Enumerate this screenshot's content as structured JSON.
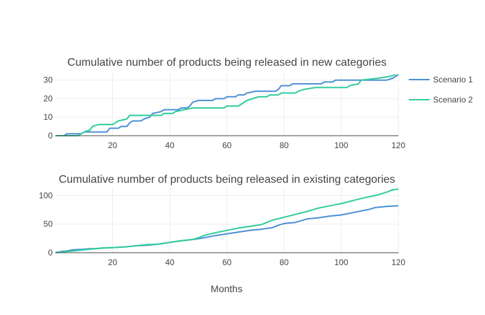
{
  "chart_data": [
    {
      "type": "line",
      "title": "Cumulative number of products being released in new categories",
      "xlabel": "",
      "ylabel": "",
      "xlim": [
        0,
        120
      ],
      "ylim": [
        0,
        34
      ],
      "xticks": [
        20,
        40,
        60,
        80,
        100,
        120
      ],
      "yticks": [
        0,
        10,
        20,
        30
      ],
      "grid": true,
      "series": [
        {
          "name": "Scenario 1",
          "color": "#4a8fd4",
          "points": [
            [
              0,
              0
            ],
            [
              3,
              0
            ],
            [
              4,
              1
            ],
            [
              9,
              1
            ],
            [
              10,
              2
            ],
            [
              18,
              2
            ],
            [
              19,
              4
            ],
            [
              22,
              4
            ],
            [
              23,
              5
            ],
            [
              25,
              5
            ],
            [
              26,
              7
            ],
            [
              27,
              8
            ],
            [
              30,
              8
            ],
            [
              31,
              9
            ],
            [
              33,
              10
            ],
            [
              34,
              12
            ],
            [
              37,
              13
            ],
            [
              38,
              14
            ],
            [
              43,
              14
            ],
            [
              44,
              15
            ],
            [
              46,
              15
            ],
            [
              47,
              16
            ],
            [
              48,
              18
            ],
            [
              50,
              19
            ],
            [
              55,
              19
            ],
            [
              56,
              20
            ],
            [
              59,
              20
            ],
            [
              60,
              21
            ],
            [
              63,
              21
            ],
            [
              64,
              22
            ],
            [
              66,
              22
            ],
            [
              67,
              23
            ],
            [
              70,
              24
            ],
            [
              77,
              24
            ],
            [
              78,
              25
            ],
            [
              79,
              27
            ],
            [
              82,
              27
            ],
            [
              83,
              28
            ],
            [
              93,
              28
            ],
            [
              94,
              29
            ],
            [
              97,
              29
            ],
            [
              98,
              30
            ],
            [
              116,
              30
            ],
            [
              118,
              31
            ],
            [
              119,
              32
            ],
            [
              120,
              33
            ]
          ]
        },
        {
          "name": "Scenario 2",
          "color": "#2ecc9a",
          "points": [
            [
              0,
              0
            ],
            [
              8,
              0
            ],
            [
              9,
              1
            ],
            [
              10,
              2
            ],
            [
              12,
              3
            ],
            [
              13,
              5
            ],
            [
              15,
              6
            ],
            [
              20,
              6
            ],
            [
              21,
              7
            ],
            [
              22,
              8
            ],
            [
              25,
              9
            ],
            [
              26,
              11
            ],
            [
              37,
              11
            ],
            [
              38,
              12
            ],
            [
              41,
              12
            ],
            [
              42,
              13
            ],
            [
              45,
              14
            ],
            [
              48,
              15
            ],
            [
              59,
              15
            ],
            [
              60,
              16
            ],
            [
              64,
              16
            ],
            [
              65,
              17
            ],
            [
              67,
              19
            ],
            [
              69,
              20
            ],
            [
              71,
              21
            ],
            [
              74,
              21
            ],
            [
              75,
              22
            ],
            [
              78,
              22
            ],
            [
              79,
              23
            ],
            [
              84,
              23
            ],
            [
              85,
              24
            ],
            [
              87,
              25
            ],
            [
              91,
              26
            ],
            [
              102,
              26
            ],
            [
              103,
              27
            ],
            [
              106,
              28
            ],
            [
              107,
              30
            ],
            [
              113,
              31
            ],
            [
              117,
              32
            ],
            [
              119,
              33
            ]
          ]
        }
      ],
      "legend": "right"
    },
    {
      "type": "line",
      "title": "Cumulative number of products being released in existing categories",
      "xlabel": "Months",
      "ylabel": "",
      "xlim": [
        0,
        120
      ],
      "ylim": [
        0,
        115
      ],
      "xticks": [
        20,
        40,
        60,
        80,
        100,
        120
      ],
      "yticks": [
        0,
        50,
        100
      ],
      "grid": true,
      "series": [
        {
          "name": "Scenario 1",
          "color": "#4a8fd4",
          "points": [
            [
              0,
              0
            ],
            [
              2,
              2
            ],
            [
              4,
              3
            ],
            [
              6,
              5
            ],
            [
              10,
              6
            ],
            [
              12,
              7
            ],
            [
              14,
              7
            ],
            [
              16,
              8
            ],
            [
              20,
              9
            ],
            [
              24,
              10
            ],
            [
              28,
              12
            ],
            [
              32,
              13
            ],
            [
              36,
              15
            ],
            [
              40,
              18
            ],
            [
              44,
              21
            ],
            [
              48,
              23
            ],
            [
              52,
              26
            ],
            [
              56,
              30
            ],
            [
              60,
              33
            ],
            [
              64,
              36
            ],
            [
              68,
              39
            ],
            [
              72,
              41
            ],
            [
              76,
              44
            ],
            [
              78,
              48
            ],
            [
              80,
              51
            ],
            [
              84,
              53
            ],
            [
              86,
              56
            ],
            [
              88,
              59
            ],
            [
              92,
              61
            ],
            [
              96,
              64
            ],
            [
              100,
              66
            ],
            [
              104,
              70
            ],
            [
              108,
              74
            ],
            [
              110,
              76
            ],
            [
              112,
              79
            ],
            [
              116,
              81
            ],
            [
              120,
              82
            ]
          ]
        },
        {
          "name": "Scenario 2",
          "color": "#2ecc9a",
          "points": [
            [
              0,
              0
            ],
            [
              4,
              2
            ],
            [
              8,
              4
            ],
            [
              12,
              6
            ],
            [
              16,
              8
            ],
            [
              20,
              9
            ],
            [
              24,
              10
            ],
            [
              28,
              12
            ],
            [
              32,
              14
            ],
            [
              36,
              15
            ],
            [
              40,
              18
            ],
            [
              44,
              21
            ],
            [
              48,
              23
            ],
            [
              50,
              26
            ],
            [
              52,
              30
            ],
            [
              56,
              35
            ],
            [
              60,
              39
            ],
            [
              64,
              43
            ],
            [
              68,
              46
            ],
            [
              72,
              49
            ],
            [
              74,
              53
            ],
            [
              76,
              57
            ],
            [
              80,
              62
            ],
            [
              84,
              67
            ],
            [
              88,
              72
            ],
            [
              92,
              78
            ],
            [
              96,
              82
            ],
            [
              100,
              86
            ],
            [
              104,
              91
            ],
            [
              108,
              96
            ],
            [
              112,
              100
            ],
            [
              116,
              106
            ],
            [
              118,
              110
            ],
            [
              120,
              111
            ]
          ]
        }
      ]
    }
  ]
}
